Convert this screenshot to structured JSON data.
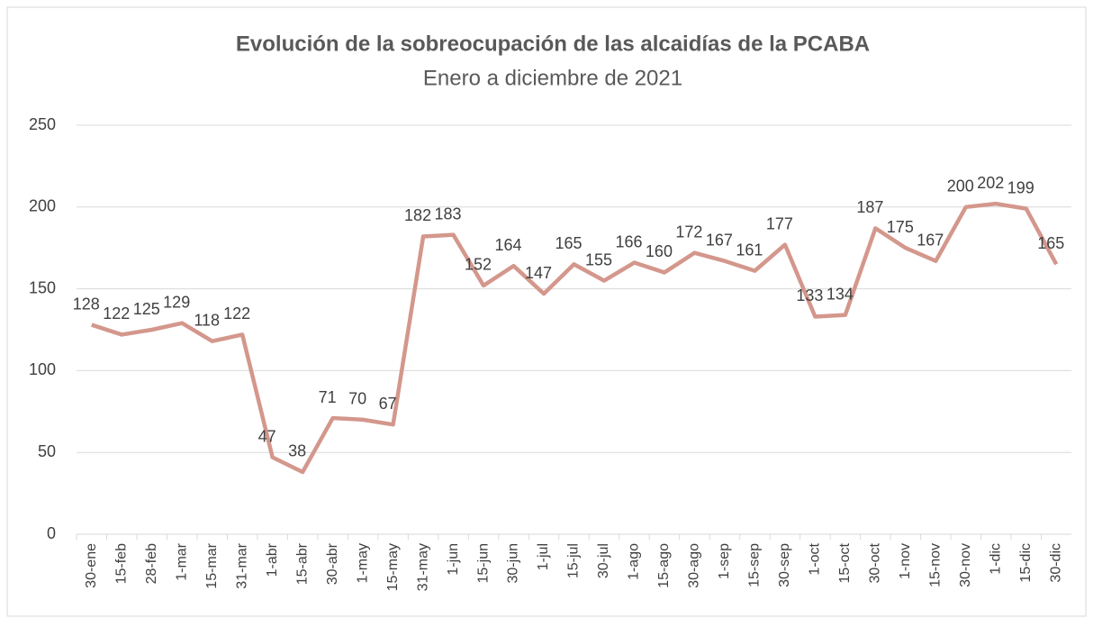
{
  "chart_data": {
    "type": "line",
    "title": "Evolución de la sobreocupación de las alcaidías de la PCABA",
    "subtitle": "Enero a diciembre de 2021",
    "categories": [
      "30-ene",
      "15-feb",
      "28-feb",
      "1-mar",
      "15-mar",
      "31-mar",
      "1-abr",
      "15-abr",
      "30-abr",
      "1-may",
      "15-may",
      "31-may",
      "1-jun",
      "15-jun",
      "30-jun",
      "1-jul",
      "15-jul",
      "30-jul",
      "1-ago",
      "15-ago",
      "30-ago",
      "1-sep",
      "15-sep",
      "30-sep",
      "1-oct",
      "15-oct",
      "30-oct",
      "1-nov",
      "15-nov",
      "30-nov",
      "1-dic",
      "15-dic",
      "30-dic"
    ],
    "values": [
      128,
      122,
      125,
      129,
      118,
      122,
      47,
      38,
      71,
      70,
      67,
      182,
      183,
      152,
      164,
      147,
      165,
      155,
      166,
      160,
      172,
      167,
      161,
      177,
      133,
      134,
      187,
      175,
      167,
      200,
      202,
      199,
      165
    ],
    "color": "#d4978c",
    "ylim": [
      0,
      250
    ],
    "yticks": [
      0,
      50,
      100,
      150,
      200,
      250
    ],
    "grid": true
  }
}
